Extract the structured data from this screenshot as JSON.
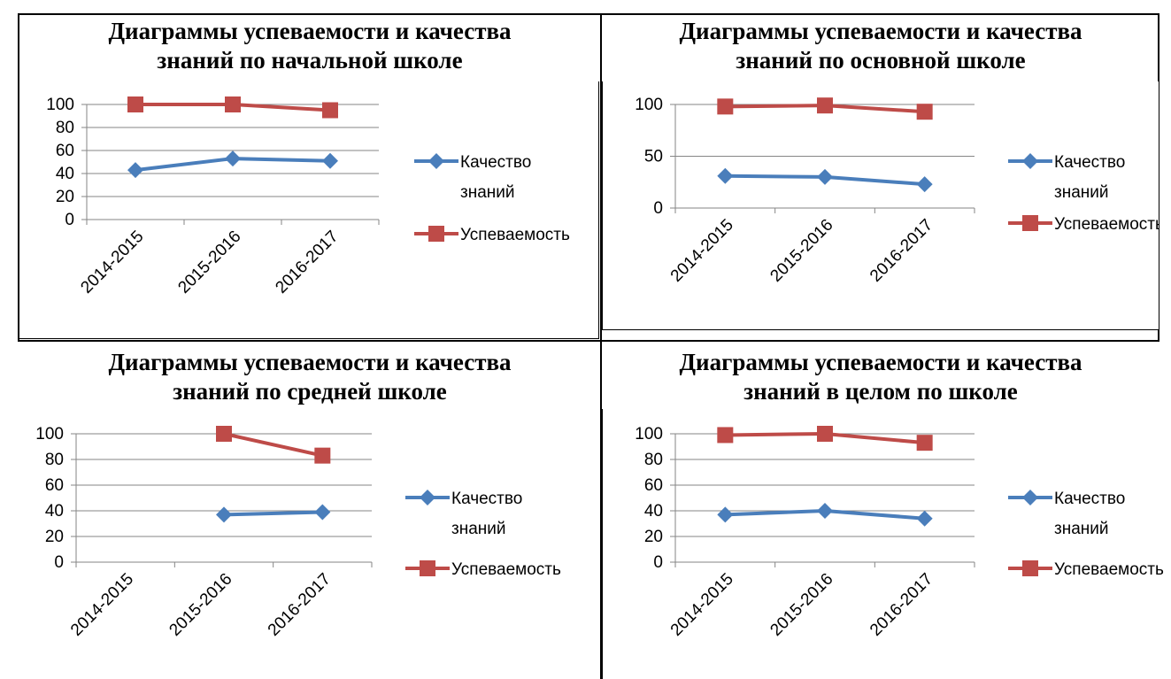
{
  "page": {
    "titles": [
      [
        "Диаграммы успеваемости и качества",
        "знаний по начальной школе"
      ],
      [
        "Диаграммы успеваемости и качества",
        "знаний по основной школе"
      ],
      [
        "Диаграммы успеваемости и качества",
        "знаний по средней школе"
      ],
      [
        "Диаграммы успеваемости и качества",
        "знаний в целом по школе"
      ]
    ]
  },
  "chart_data": [
    {
      "type": "line",
      "title": "Диаграммы успеваемости и качества знаний по начальной школе",
      "categories": [
        "2014-2015",
        "2015-2016",
        "2016-2017"
      ],
      "ylim": [
        0,
        100
      ],
      "yticks": [
        0,
        20,
        40,
        60,
        80,
        100
      ],
      "grid": true,
      "legend_position": "right",
      "series": [
        {
          "name": "Качество знаний",
          "values": [
            43,
            53,
            51
          ],
          "color": "#4a7ebb",
          "marker": "diamond"
        },
        {
          "name": "Успеваемость",
          "values": [
            100,
            100,
            95
          ],
          "color": "#be4b48",
          "marker": "square"
        }
      ]
    },
    {
      "type": "line",
      "title": "Диаграммы успеваемости и качества знаний по основной школе",
      "categories": [
        "2014-2015",
        "2015-2016",
        "2016-2017"
      ],
      "ylim": [
        0,
        100
      ],
      "yticks": [
        0,
        50,
        100
      ],
      "grid": true,
      "legend_position": "right",
      "series": [
        {
          "name": "Качество знаний",
          "values": [
            31,
            30,
            23
          ],
          "color": "#4a7ebb",
          "marker": "diamond"
        },
        {
          "name": "Успеваемость",
          "values": [
            98,
            99,
            93
          ],
          "color": "#be4b48",
          "marker": "square"
        }
      ]
    },
    {
      "type": "line",
      "title": "Диаграммы успеваемости и качества знаний по средней школе",
      "categories": [
        "2014-2015",
        "2015-2016",
        "2016-2017"
      ],
      "ylim": [
        0,
        100
      ],
      "yticks": [
        0,
        20,
        40,
        60,
        80,
        100
      ],
      "grid": true,
      "legend_position": "right",
      "series": [
        {
          "name": "Качество знаний",
          "values": [
            null,
            37,
            39
          ],
          "color": "#4a7ebb",
          "marker": "diamond"
        },
        {
          "name": "Успеваемость",
          "values": [
            null,
            100,
            83
          ],
          "color": "#be4b48",
          "marker": "square"
        }
      ]
    },
    {
      "type": "line",
      "title": "Диаграммы успеваемости и качества знаний в целом по школе",
      "categories": [
        "2014-2015",
        "2015-2016",
        "2016-2017"
      ],
      "ylim": [
        0,
        100
      ],
      "yticks": [
        0,
        20,
        40,
        60,
        80,
        100
      ],
      "grid": true,
      "legend_position": "right",
      "series": [
        {
          "name": "Качество знаний",
          "values": [
            37,
            40,
            34
          ],
          "color": "#4a7ebb",
          "marker": "diamond"
        },
        {
          "name": "Успеваемость",
          "values": [
            99,
            100,
            93
          ],
          "color": "#be4b48",
          "marker": "square"
        }
      ]
    }
  ]
}
